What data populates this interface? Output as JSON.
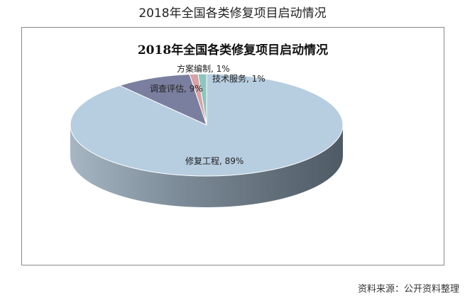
{
  "outer_title": "2018年全国各类修复项目启动情况",
  "source": "资料来源：公开资料整理",
  "chart_data": {
    "type": "pie",
    "title": "2018年全国各类修复项目启动情况",
    "style": "3d",
    "slices": [
      {
        "name": "修复工程",
        "value": 89,
        "label": "修复工程, 89%",
        "color": "#b7cde0"
      },
      {
        "name": "调查评估",
        "value": 9,
        "label": "调查评估, 9%",
        "color": "#7b7f9f"
      },
      {
        "name": "方案编制",
        "value": 1,
        "label": "方案编制, 1%",
        "color": "#d8a3a6"
      },
      {
        "name": "技术服务",
        "value": 1,
        "label": "技术服务, 1%",
        "color": "#8cc6be"
      }
    ]
  }
}
